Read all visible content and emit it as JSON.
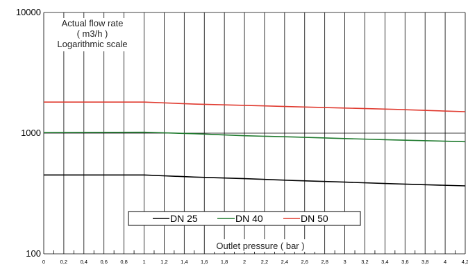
{
  "chart_data": {
    "type": "line",
    "yscale": "log",
    "ylim": [
      100,
      10000
    ],
    "xlim": [
      0,
      4.2
    ],
    "grid": true,
    "legend_position": "bottom-center",
    "title_lines": [
      "Actual flow rate",
      "( m3/h )",
      "Logarithmic scale"
    ],
    "xlabel": "Outlet pressure ( bar )",
    "yticks": [
      {
        "value": 100,
        "label": "100"
      },
      {
        "value": 1000,
        "label": "1000"
      },
      {
        "value": 10000,
        "label": "10000"
      }
    ],
    "xticks_major": [
      {
        "value": 0,
        "label": "0"
      },
      {
        "value": 0.2,
        "label": "0,2"
      },
      {
        "value": 0.4,
        "label": "0,4"
      },
      {
        "value": 0.6,
        "label": "0,6"
      },
      {
        "value": 0.8,
        "label": "0,8"
      },
      {
        "value": 1,
        "label": "1"
      },
      {
        "value": 1.2,
        "label": "1,2"
      },
      {
        "value": 1.4,
        "label": "1,4"
      },
      {
        "value": 1.6,
        "label": "1,6"
      },
      {
        "value": 1.8,
        "label": "1,8"
      },
      {
        "value": 2,
        "label": "2"
      },
      {
        "value": 2.2,
        "label": "2,2"
      },
      {
        "value": 2.4,
        "label": "2,4"
      },
      {
        "value": 2.6,
        "label": "2,6"
      },
      {
        "value": 2.8,
        "label": "2,8"
      },
      {
        "value": 3,
        "label": "3"
      },
      {
        "value": 3.2,
        "label": "3,2"
      },
      {
        "value": 3.4,
        "label": "3,4"
      },
      {
        "value": 3.6,
        "label": "3,6"
      },
      {
        "value": 3.8,
        "label": "3,8"
      },
      {
        "value": 4,
        "label": "4"
      },
      {
        "value": 4.2,
        "label": "4,2"
      }
    ],
    "x": [
      0,
      1,
      1.5,
      2,
      2.5,
      3,
      3.5,
      4.2
    ],
    "series": [
      {
        "name": "DN 25",
        "color": "#000000",
        "values": [
          450,
          450,
          433,
          420,
          405,
          393,
          380,
          366
        ]
      },
      {
        "name": "DN 40",
        "color": "#1f7a2e",
        "values": [
          1010,
          1018,
          990,
          952,
          928,
          902,
          878,
          850
        ]
      },
      {
        "name": "DN 50",
        "color": "#e03a2f",
        "values": [
          1810,
          1810,
          1740,
          1700,
          1655,
          1615,
          1575,
          1505
        ]
      }
    ]
  }
}
